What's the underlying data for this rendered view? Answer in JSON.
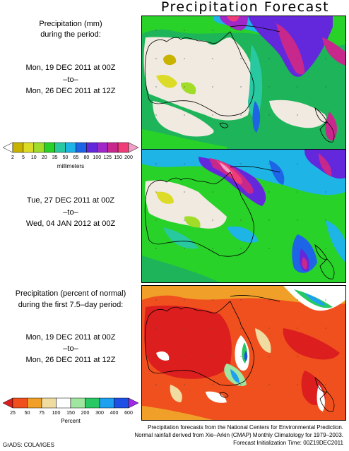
{
  "title": "Precipitation Forecast",
  "panel1": {
    "line1": "Precipitation (mm)",
    "line2": "during the period:",
    "start": "Mon, 19 DEC 2011 at 00Z",
    "to": "–to–",
    "end": "Mon, 26 DEC 2011 at 12Z"
  },
  "panel2": {
    "start": "Tue, 27 DEC 2011 at 00Z",
    "to": "–to–",
    "end": "Wed, 04 JAN 2012 at 00Z"
  },
  "panel3": {
    "line1": "Precipitation (percent of normal)",
    "line2": "during the first 7.5–day period:",
    "start": "Mon, 19 DEC 2011 at 00Z",
    "to": "–to–",
    "end": "Mon, 26 DEC 2011 at 12Z"
  },
  "colorbar_mm": {
    "label": "millimeters",
    "ticks": [
      "2",
      "5",
      "10",
      "20",
      "35",
      "50",
      "65",
      "80",
      "100",
      "125",
      "150",
      "200"
    ],
    "colors": [
      "#ffffff",
      "#c8b400",
      "#dcdc28",
      "#a0dc28",
      "#28d228",
      "#28c8a0",
      "#1eb4e6",
      "#1e64e6",
      "#6428dc",
      "#a028c8",
      "#c8288c",
      "#f03c78",
      "#f0a0c8"
    ]
  },
  "colorbar_pct": {
    "label": "Percent",
    "ticks": [
      "25",
      "50",
      "75",
      "100",
      "150",
      "200",
      "300",
      "400",
      "600"
    ],
    "colors": [
      "#dc1e1e",
      "#f0501e",
      "#f0a028",
      "#f0dca0",
      "#ffffff",
      "#a0e6a0",
      "#28c864",
      "#1ea0f0",
      "#1e50e6",
      "#a028e6"
    ]
  },
  "footer": {
    "line1": "Precipitation forecasts from the National Centers for Environmental Prediction.",
    "line2": "Normal rainfall derived from Xie–Arkin (CMAP) Monthly Climatology for 1979–2003.",
    "line3": "Forecast Initialization Time: 00Z19DEC2011",
    "grads": "GrADS: COLA/IGES"
  }
}
